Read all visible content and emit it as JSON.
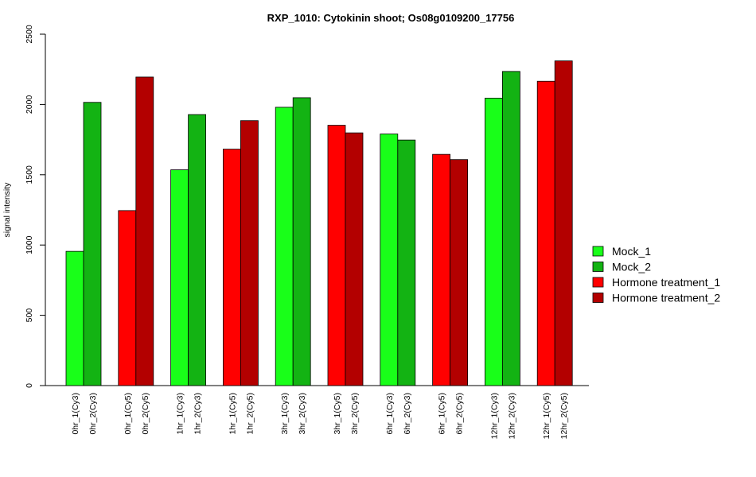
{
  "chart_data": {
    "type": "bar",
    "title": "RXP_1010: Cytokinin shoot; Os08g0109200_17756",
    "xlabel": "",
    "ylabel": "signal intensity",
    "ylim": [
      0,
      2500
    ],
    "yticks": [
      0,
      500,
      1000,
      1500,
      2000,
      2500
    ],
    "grid": false,
    "legend_position": "right",
    "legend": [
      {
        "label": "Mock_1",
        "color": "#19ff19"
      },
      {
        "label": "Mock_2",
        "color": "#13b313"
      },
      {
        "label": "Hormone treatment_1",
        "color": "#ff0000"
      },
      {
        "label": "Hormone treatment_2",
        "color": "#b30000"
      }
    ],
    "groups": [
      {
        "bars": [
          {
            "label": "0hr_1(Cy3)",
            "value": 955,
            "color": "#19ff19"
          },
          {
            "label": "0hr_2(Cy3)",
            "value": 2015,
            "color": "#13b313"
          }
        ]
      },
      {
        "bars": [
          {
            "label": "0hr_1(Cy5)",
            "value": 1245,
            "color": "#ff0000"
          },
          {
            "label": "0hr_2(Cy5)",
            "value": 2195,
            "color": "#b30000"
          }
        ]
      },
      {
        "bars": [
          {
            "label": "1hr_1(Cy3)",
            "value": 1535,
            "color": "#19ff19"
          },
          {
            "label": "1hr_2(Cy3)",
            "value": 1928,
            "color": "#13b313"
          }
        ]
      },
      {
        "bars": [
          {
            "label": "1hr_1(Cy5)",
            "value": 1682,
            "color": "#ff0000"
          },
          {
            "label": "1hr_2(Cy5)",
            "value": 1885,
            "color": "#b30000"
          }
        ]
      },
      {
        "bars": [
          {
            "label": "3hr_1(Cy3)",
            "value": 1980,
            "color": "#19ff19"
          },
          {
            "label": "3hr_2(Cy3)",
            "value": 2048,
            "color": "#13b313"
          }
        ]
      },
      {
        "bars": [
          {
            "label": "3hr_1(Cy5)",
            "value": 1852,
            "color": "#ff0000"
          },
          {
            "label": "3hr_2(Cy5)",
            "value": 1798,
            "color": "#b30000"
          }
        ]
      },
      {
        "bars": [
          {
            "label": "6hr_1(Cy3)",
            "value": 1790,
            "color": "#19ff19"
          },
          {
            "label": "6hr_2(Cy3)",
            "value": 1747,
            "color": "#13b313"
          }
        ]
      },
      {
        "bars": [
          {
            "label": "6hr_1(Cy5)",
            "value": 1645,
            "color": "#ff0000"
          },
          {
            "label": "6hr_2(Cy5)",
            "value": 1608,
            "color": "#b30000"
          }
        ]
      },
      {
        "bars": [
          {
            "label": "12hr_1(Cy3)",
            "value": 2045,
            "color": "#19ff19"
          },
          {
            "label": "12hr_2(Cy3)",
            "value": 2235,
            "color": "#13b313"
          }
        ]
      },
      {
        "bars": [
          {
            "label": "12hr_1(Cy5)",
            "value": 2165,
            "color": "#ff0000"
          },
          {
            "label": "12hr_2(Cy5)",
            "value": 2310,
            "color": "#b30000"
          }
        ]
      }
    ]
  }
}
